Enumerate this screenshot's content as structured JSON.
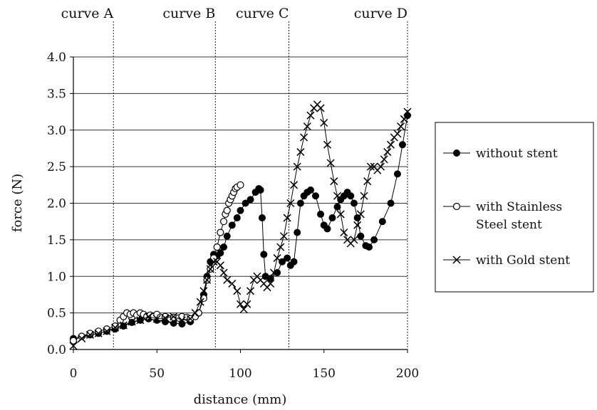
{
  "chart_data": {
    "type": "scatter",
    "title": "",
    "xlabel": "distance (mm)",
    "ylabel": "force (N)",
    "xlim": [
      0,
      200
    ],
    "ylim": [
      0,
      4.0
    ],
    "x_ticks": [
      "0",
      "50",
      "100",
      "150",
      "200"
    ],
    "y_ticks": [
      "0.0",
      "0.5",
      "1.0",
      "1.5",
      "2.0",
      "2.5",
      "3.0",
      "3.5",
      "4.0"
    ],
    "grid": "horizontal",
    "legend_position": "right",
    "section_lines": [
      {
        "label": "curve A",
        "x": 24
      },
      {
        "label": "curve B",
        "x": 85
      },
      {
        "label": "curve C",
        "x": 129
      },
      {
        "label": "curve D",
        "x": 200
      }
    ],
    "series": [
      {
        "name": "without stent",
        "marker": "filled-circle",
        "x": [
          0,
          5,
          10,
          15,
          20,
          25,
          30,
          35,
          40,
          45,
          50,
          55,
          60,
          65,
          70,
          75,
          78,
          80,
          82,
          84,
          86,
          88,
          90,
          92,
          95,
          98,
          100,
          103,
          106,
          109,
          111,
          112,
          113,
          114,
          115,
          118,
          122,
          125,
          128,
          130,
          132,
          134,
          136,
          138,
          140,
          142,
          145,
          148,
          150,
          152,
          155,
          158,
          160,
          162,
          164,
          166,
          168,
          170,
          172,
          175,
          177,
          180,
          185,
          190,
          194,
          197,
          200
        ],
        "y": [
          0.15,
          0.18,
          0.2,
          0.22,
          0.25,
          0.28,
          0.32,
          0.37,
          0.4,
          0.42,
          0.4,
          0.38,
          0.36,
          0.35,
          0.38,
          0.5,
          0.75,
          1.0,
          1.2,
          1.3,
          1.28,
          1.32,
          1.4,
          1.55,
          1.7,
          1.8,
          1.9,
          2.0,
          2.05,
          2.15,
          2.2,
          2.18,
          1.8,
          1.3,
          1.0,
          0.97,
          1.05,
          1.2,
          1.25,
          1.15,
          1.2,
          1.6,
          2.0,
          2.1,
          2.15,
          2.18,
          2.1,
          1.85,
          1.7,
          1.65,
          1.8,
          1.95,
          2.05,
          2.1,
          2.15,
          2.1,
          2.0,
          1.8,
          1.55,
          1.42,
          1.4,
          1.5,
          1.75,
          2.0,
          2.4,
          2.8,
          3.2
        ]
      },
      {
        "name": "with Stainless Steel stent",
        "marker": "open-circle",
        "x": [
          0,
          5,
          10,
          15,
          20,
          25,
          28,
          30,
          32,
          34,
          36,
          38,
          40,
          42,
          44,
          46,
          48,
          50,
          52,
          55,
          58,
          60,
          63,
          65,
          68,
          70,
          73,
          75,
          78,
          80,
          82,
          84,
          86,
          88,
          90,
          91,
          92,
          93,
          94,
          95,
          96,
          97,
          98,
          100
        ],
        "y": [
          0.12,
          0.18,
          0.22,
          0.25,
          0.28,
          0.32,
          0.4,
          0.45,
          0.5,
          0.48,
          0.5,
          0.47,
          0.5,
          0.48,
          0.45,
          0.47,
          0.45,
          0.48,
          0.44,
          0.45,
          0.42,
          0.44,
          0.43,
          0.45,
          0.44,
          0.42,
          0.45,
          0.5,
          0.7,
          0.95,
          1.1,
          1.25,
          1.4,
          1.6,
          1.75,
          1.85,
          1.9,
          2.0,
          2.05,
          2.1,
          2.15,
          2.2,
          2.22,
          2.25
        ]
      },
      {
        "name": "with Gold stent",
        "marker": "cross",
        "x": [
          0,
          5,
          10,
          15,
          20,
          25,
          30,
          35,
          40,
          45,
          50,
          55,
          60,
          65,
          70,
          73,
          76,
          78,
          80,
          82,
          84,
          86,
          88,
          90,
          92,
          95,
          98,
          100,
          102,
          104,
          106,
          108,
          110,
          112,
          114,
          116,
          118,
          120,
          122,
          124,
          126,
          128,
          130,
          132,
          134,
          136,
          138,
          140,
          142,
          144,
          146,
          148,
          150,
          152,
          154,
          156,
          158,
          160,
          162,
          164,
          166,
          168,
          170,
          172,
          174,
          176,
          178,
          180,
          182,
          184,
          186,
          188,
          190,
          192,
          194,
          196,
          198,
          200
        ],
        "y": [
          0.05,
          0.15,
          0.2,
          0.22,
          0.25,
          0.3,
          0.33,
          0.38,
          0.4,
          0.45,
          0.42,
          0.43,
          0.45,
          0.4,
          0.42,
          0.5,
          0.65,
          0.8,
          0.95,
          1.1,
          1.2,
          1.2,
          1.15,
          1.05,
          0.95,
          0.9,
          0.8,
          0.62,
          0.55,
          0.62,
          0.8,
          0.95,
          1.0,
          0.95,
          0.9,
          0.85,
          0.9,
          1.05,
          1.25,
          1.4,
          1.55,
          1.8,
          2.0,
          2.25,
          2.5,
          2.7,
          2.9,
          3.05,
          3.2,
          3.3,
          3.35,
          3.3,
          3.1,
          2.8,
          2.55,
          2.3,
          2.1,
          1.85,
          1.6,
          1.5,
          1.45,
          1.5,
          1.7,
          1.85,
          2.1,
          2.3,
          2.5,
          2.5,
          2.45,
          2.5,
          2.6,
          2.7,
          2.8,
          2.9,
          2.95,
          3.05,
          3.15,
          3.25
        ]
      }
    ]
  },
  "legend": {
    "items": [
      {
        "label_lines": [
          "without stent"
        ]
      },
      {
        "label_lines": [
          "with Stainless",
          "Steel stent"
        ]
      },
      {
        "label_lines": [
          "with Gold stent"
        ]
      }
    ]
  }
}
